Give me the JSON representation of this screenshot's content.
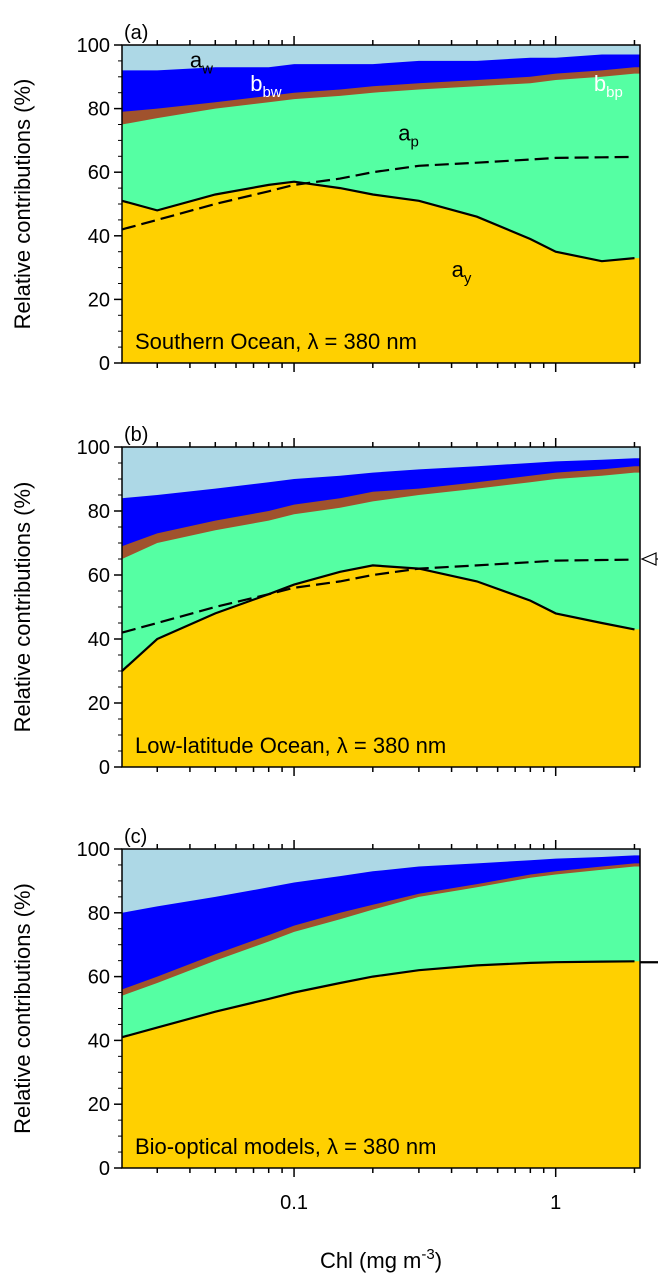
{
  "colors": {
    "a_w": "#add8e6",
    "b_bw": "#0000ff",
    "b_bp": "#a0522d",
    "a_p": "#55ffa3",
    "a_y": "#ffd000",
    "line": "#000000"
  },
  "xlabel_base": "Chl (mg m",
  "xlabel_sup": "-3",
  "xlabel_end": ")",
  "chart_data": [
    {
      "type": "area",
      "panel": "(a)",
      "annotation": "Southern Ocean, λ = 380 nm",
      "ylabel": "Relative contributions (%)",
      "xscale": "log",
      "xlim": [
        0.022,
        2.1
      ],
      "ylim": [
        0,
        100
      ],
      "xticks": [
        "0.1",
        "1"
      ],
      "xtick_values": [
        0.1,
        1
      ],
      "yticks": [
        "0",
        "20",
        "40",
        "60",
        "80",
        "100"
      ],
      "component_labels": [
        {
          "base": "a",
          "sub": "w"
        },
        {
          "base": "b",
          "sub": "bw"
        },
        {
          "base": "b",
          "sub": "bp"
        },
        {
          "base": "a",
          "sub": "p"
        },
        {
          "base": "a",
          "sub": "y"
        }
      ],
      "x": [
        0.022,
        0.03,
        0.05,
        0.08,
        0.1,
        0.15,
        0.2,
        0.3,
        0.5,
        0.8,
        1.0,
        1.5,
        2.0
      ],
      "series": [
        {
          "key": "a_y",
          "cumulative_top": [
            51,
            48,
            53,
            56,
            57,
            55,
            53,
            51,
            46,
            39,
            35,
            32,
            33
          ]
        },
        {
          "key": "a_p",
          "cumulative_top": [
            75,
            77,
            80,
            82,
            83,
            84,
            85,
            86,
            87,
            88,
            89,
            90,
            91
          ]
        },
        {
          "key": "b_bp",
          "cumulative_top": [
            79,
            80,
            82,
            84,
            85,
            86,
            87,
            88,
            89,
            90,
            91,
            92,
            93
          ]
        },
        {
          "key": "b_bw",
          "cumulative_top": [
            92,
            92,
            93,
            93,
            94,
            94,
            94,
            95,
            95,
            96,
            96,
            97,
            97
          ]
        }
      ],
      "model_line": {
        "style": "dashed",
        "x": [
          0.022,
          0.03,
          0.05,
          0.08,
          0.1,
          0.15,
          0.2,
          0.3,
          0.5,
          0.8,
          1.0,
          1.5,
          2.0
        ],
        "y": [
          42,
          45,
          50,
          54,
          56,
          58,
          60,
          62,
          63,
          64,
          64.5,
          64.7,
          64.8
        ]
      }
    },
    {
      "type": "area",
      "panel": "(b)",
      "annotation": "Low-latitude Ocean, λ = 380 nm",
      "ylabel": "Relative contributions (%)",
      "xscale": "log",
      "xlim": [
        0.022,
        2.1
      ],
      "ylim": [
        0,
        100
      ],
      "xticks": [
        "0.1",
        "1"
      ],
      "xtick_values": [
        0.1,
        1
      ],
      "yticks": [
        "0",
        "20",
        "40",
        "60",
        "80",
        "100"
      ],
      "x": [
        0.022,
        0.03,
        0.05,
        0.08,
        0.1,
        0.15,
        0.2,
        0.3,
        0.5,
        0.8,
        1.0,
        1.5,
        2.0
      ],
      "series": [
        {
          "key": "a_y",
          "cumulative_top": [
            30,
            40,
            48,
            54,
            57,
            61,
            63,
            62,
            58,
            52,
            48,
            45,
            43
          ]
        },
        {
          "key": "a_p",
          "cumulative_top": [
            65,
            70,
            74,
            77,
            79,
            81,
            83,
            85,
            87,
            89,
            90,
            91,
            92
          ]
        },
        {
          "key": "b_bp",
          "cumulative_top": [
            69,
            73,
            77,
            80,
            82,
            84,
            86,
            87,
            89,
            91,
            92,
            93,
            94
          ]
        },
        {
          "key": "b_bw",
          "cumulative_top": [
            84,
            85,
            87,
            89,
            90,
            91,
            92,
            93,
            94,
            95,
            95.5,
            96,
            96.5
          ]
        }
      ],
      "model_line": {
        "style": "dashed",
        "x": [
          0.022,
          0.03,
          0.05,
          0.08,
          0.1,
          0.15,
          0.2,
          0.3,
          0.5,
          0.8,
          1.0,
          1.5,
          2.0
        ],
        "y": [
          42,
          45,
          50,
          54,
          56,
          58,
          60,
          62,
          63,
          64,
          64.5,
          64.7,
          64.8
        ]
      }
    },
    {
      "type": "area",
      "panel": "(c)",
      "annotation": "Bio-optical models, λ = 380 nm",
      "ylabel": "Relative contributions (%)",
      "xscale": "log",
      "xlim": [
        0.022,
        2.1
      ],
      "ylim": [
        0,
        100
      ],
      "xticks": [
        "0.1",
        "1"
      ],
      "xtick_values": [
        0.1,
        1
      ],
      "yticks": [
        "0",
        "20",
        "40",
        "60",
        "80",
        "100"
      ],
      "x": [
        0.022,
        0.03,
        0.05,
        0.08,
        0.1,
        0.15,
        0.2,
        0.3,
        0.5,
        0.8,
        1.0,
        1.5,
        2.0
      ],
      "series": [
        {
          "key": "a_y",
          "cumulative_top": [
            41,
            44,
            49,
            53,
            55,
            58,
            60,
            62,
            63.5,
            64.3,
            64.5,
            64.7,
            64.8
          ]
        },
        {
          "key": "a_p",
          "cumulative_top": [
            54,
            58,
            65,
            71,
            74,
            78,
            81,
            85,
            88,
            91,
            92,
            93.5,
            94.5
          ]
        },
        {
          "key": "b_bp",
          "cumulative_top": [
            56,
            60,
            67,
            73,
            76,
            80,
            82.5,
            86,
            89,
            92,
            93,
            94.5,
            95.5
          ]
        },
        {
          "key": "b_bw",
          "cumulative_top": [
            80,
            82,
            85,
            88,
            89.5,
            91.5,
            93,
            94.5,
            95.5,
            96.5,
            97,
            97.5,
            98
          ]
        }
      ],
      "model_line": {
        "style": "solid",
        "x": [
          0.022,
          0.03,
          0.05,
          0.08,
          0.1,
          0.15,
          0.2,
          0.3,
          0.5,
          0.8,
          1.0,
          1.5,
          2.0
        ],
        "y": [
          41,
          44,
          49,
          53,
          55,
          58,
          60,
          62,
          63.5,
          64.3,
          64.5,
          64.7,
          64.8
        ]
      }
    }
  ]
}
